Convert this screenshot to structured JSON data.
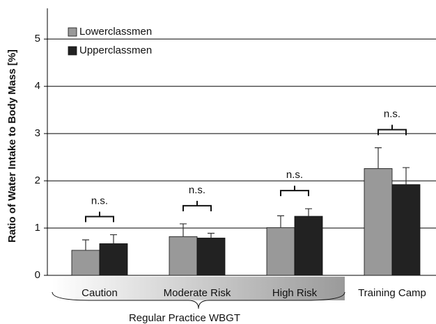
{
  "chart_data": {
    "type": "bar",
    "y_label": "Ratio of Water Intake to Body Mass [%]",
    "categories": [
      "Caution",
      "Moderate Risk",
      "High Risk",
      "Training Camp"
    ],
    "series": [
      {
        "name": "Lowerclassmen",
        "color": "#999999",
        "values": [
          0.53,
          0.82,
          1.01,
          2.26
        ],
        "errors": [
          0.22,
          0.27,
          0.25,
          0.44
        ]
      },
      {
        "name": "Upperclassmen",
        "color": "#222222",
        "values": [
          0.67,
          0.79,
          1.25,
          1.92
        ],
        "errors": [
          0.19,
          0.1,
          0.16,
          0.36
        ]
      }
    ],
    "annotations": [
      "n.s.",
      "n.s.",
      "n.s.",
      "n.s."
    ],
    "group_label": "Regular Practice WBGT",
    "ylim": [
      0,
      5.65
    ],
    "yticks": [
      0,
      1,
      2,
      3,
      4,
      5
    ],
    "grid": true,
    "legend": "upper left"
  }
}
